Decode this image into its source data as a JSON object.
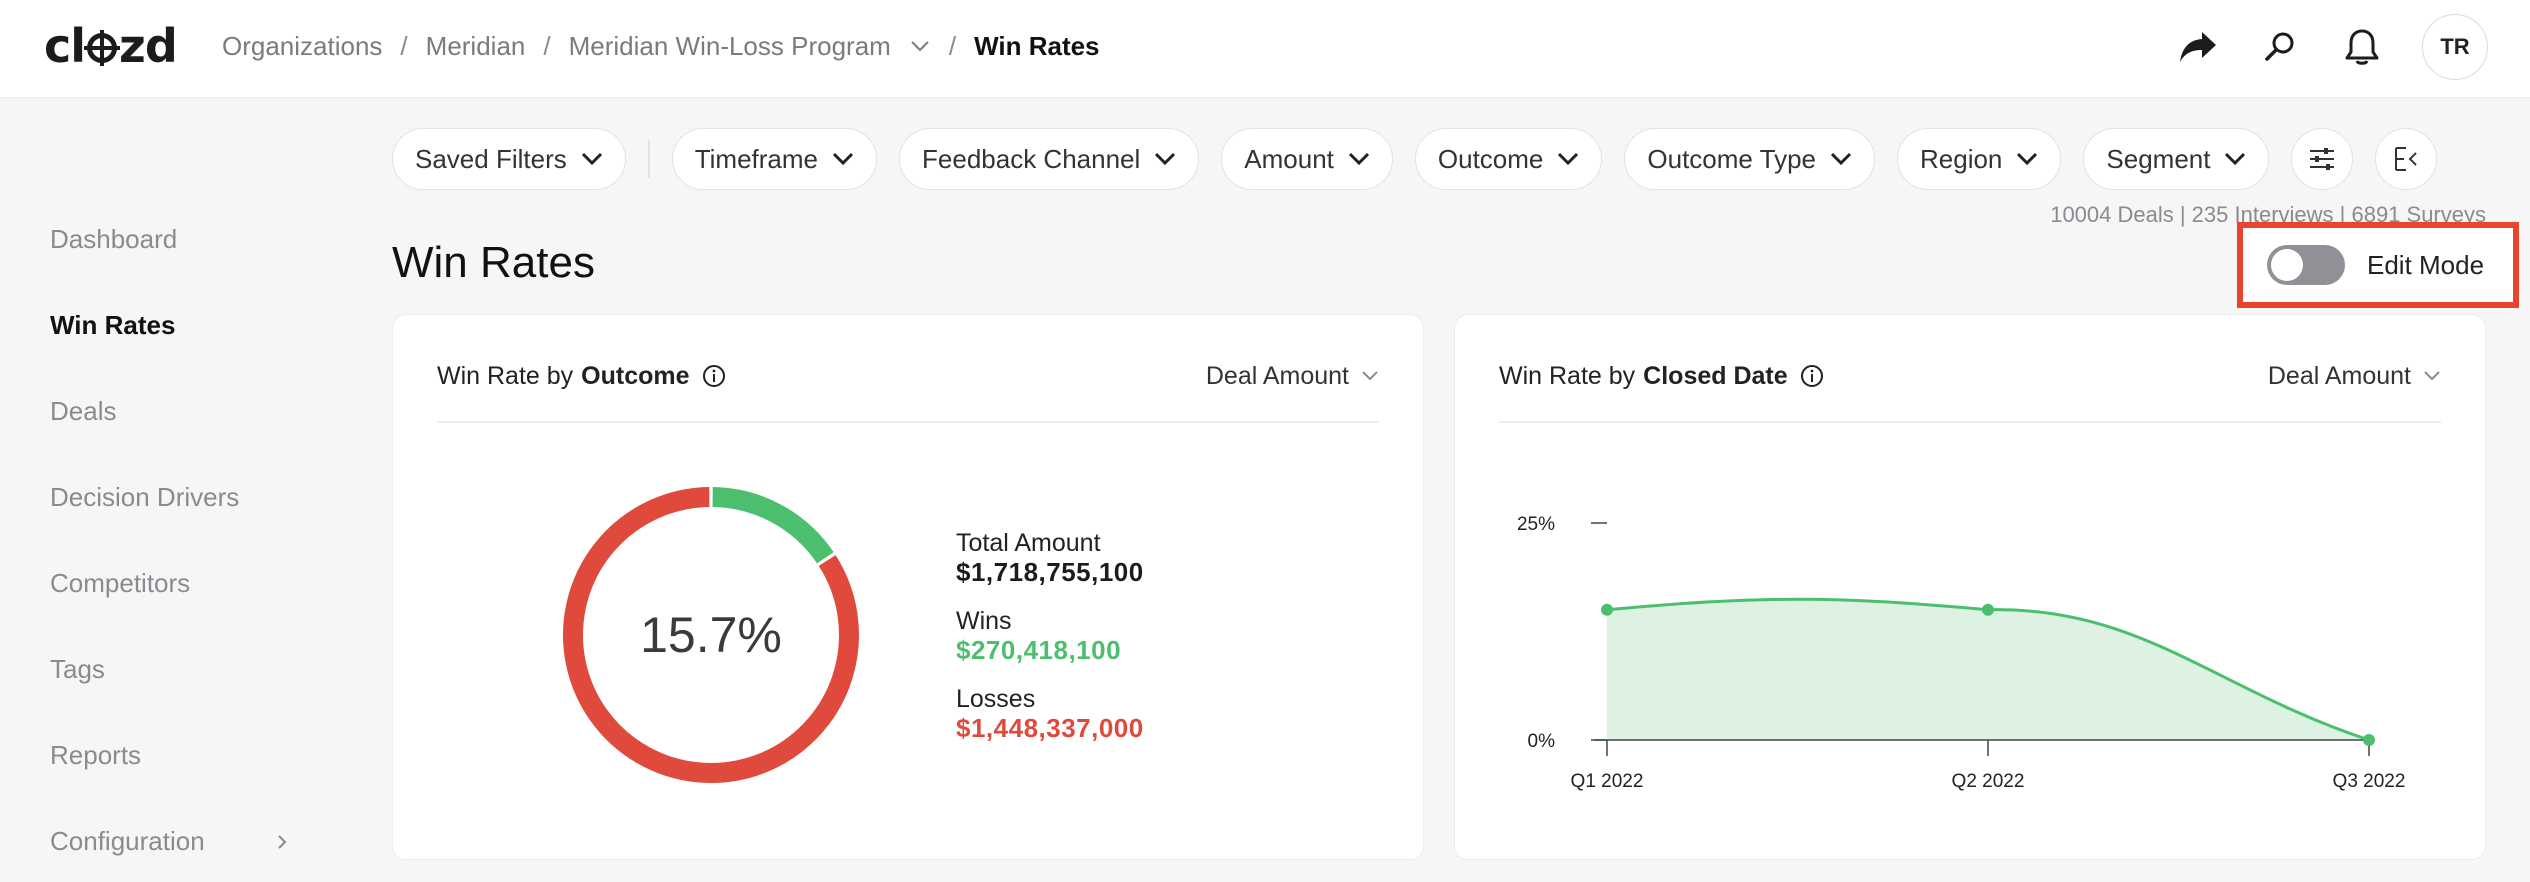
{
  "app": {
    "logo": "clozd"
  },
  "breadcrumb": {
    "items": [
      "Organizations",
      "Meridian",
      "Meridian Win-Loss Program"
    ],
    "current": "Win Rates"
  },
  "header": {
    "avatar_initials": "TR",
    "icons": [
      "share-icon",
      "search-icon",
      "bell-icon"
    ]
  },
  "sidebar": {
    "items": [
      {
        "label": "Dashboard",
        "active": false
      },
      {
        "label": "Win Rates",
        "active": true
      },
      {
        "label": "Deals",
        "active": false
      },
      {
        "label": "Decision Drivers",
        "active": false
      },
      {
        "label": "Competitors",
        "active": false
      },
      {
        "label": "Tags",
        "active": false
      },
      {
        "label": "Reports",
        "active": false
      },
      {
        "label": "Configuration",
        "active": false
      }
    ]
  },
  "filters": {
    "saved": "Saved Filters",
    "items": [
      "Timeframe",
      "Feedback Channel",
      "Amount",
      "Outcome",
      "Outcome Type",
      "Region",
      "Segment"
    ]
  },
  "counts": "10004 Deals | 235 Interviews | 6891 Surveys",
  "page": {
    "title": "Win Rates",
    "edit_mode_label": "Edit Mode",
    "edit_mode_on": false
  },
  "outcome_card": {
    "title_prefix": "Win Rate by",
    "title_bold": "Outcome",
    "select": "Deal Amount",
    "center_label": "15.7%",
    "total_label": "Total Amount",
    "total_value": "$1,718,755,100",
    "wins_label": "Wins",
    "wins_value": "$270,418,100",
    "losses_label": "Losses",
    "losses_value": "$1,448,337,000"
  },
  "closed_card": {
    "title_prefix": "Win Rate by",
    "title_bold": "Closed Date",
    "select": "Deal Amount"
  },
  "colors": {
    "win": "#4cbf6e",
    "loss": "#e04a3c",
    "area": "#ddf2e2",
    "accent_box": "#e8442e"
  },
  "chart_data": [
    {
      "type": "pie",
      "categories": [
        "Wins",
        "Losses"
      ],
      "values": [
        270418100,
        1448337000
      ]
    },
    {
      "type": "area",
      "categories": [
        "Q1 2022",
        "Q2 2022",
        "Q3 2022"
      ],
      "y_ticks": [
        "25%",
        "0%"
      ],
      "ylim": [
        0,
        25
      ],
      "values": [
        15,
        15,
        0
      ]
    }
  ]
}
